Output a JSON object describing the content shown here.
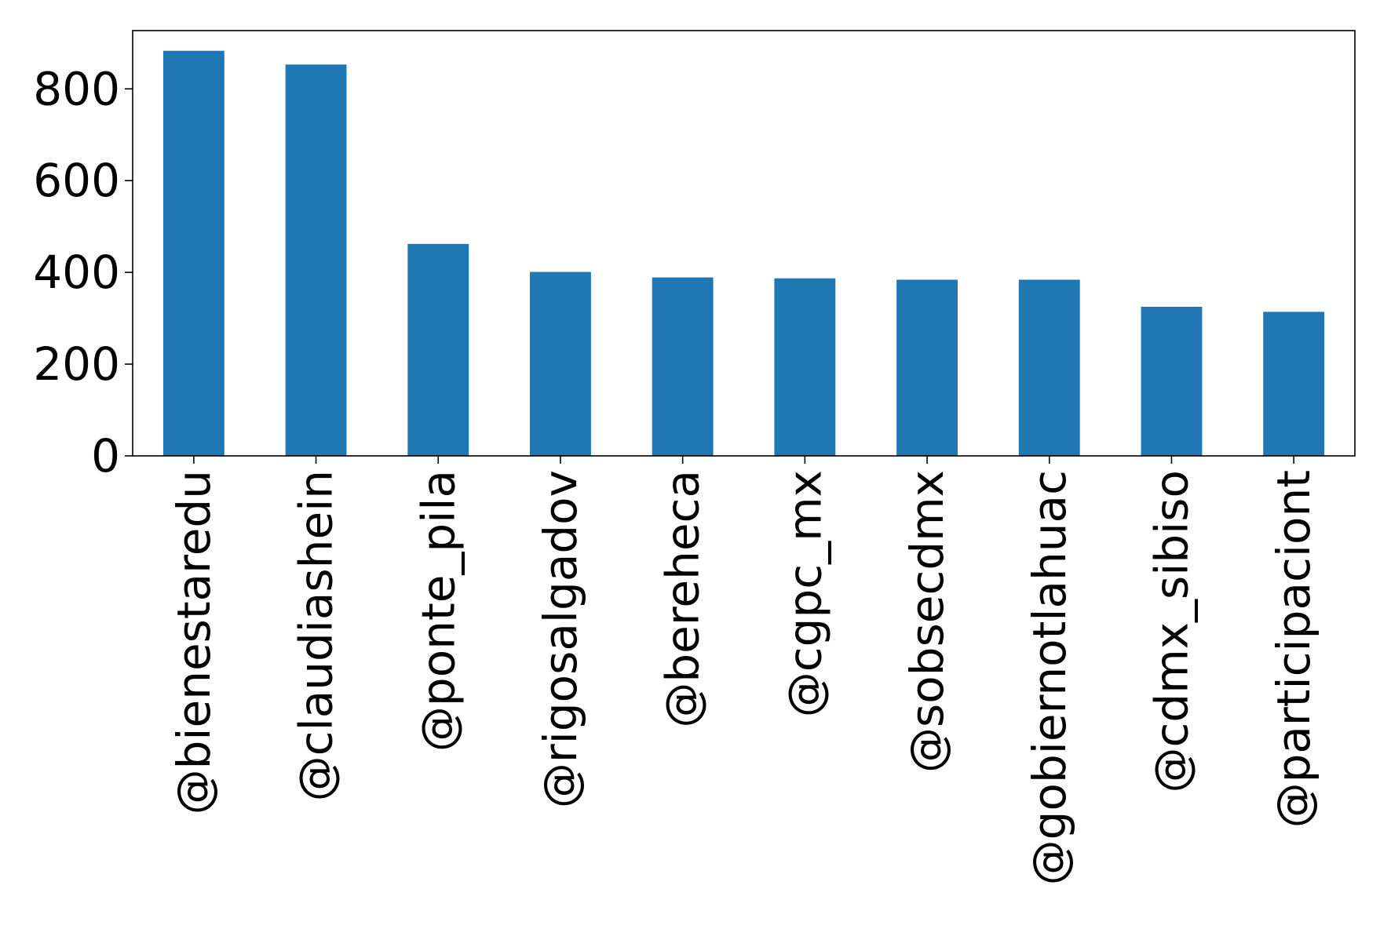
{
  "chart_data": {
    "type": "bar",
    "title": "",
    "xlabel": "",
    "ylabel": "",
    "categories": [
      "@bienestaredu",
      "@claudiashein",
      "@ponte_pila",
      "@rigosalgadov",
      "@bereheca",
      "@cgpc_mx",
      "@sobsecdmx",
      "@gobiernotlahuac",
      "@cdmx_sibiso",
      "@participaciont"
    ],
    "values": [
      883,
      853,
      462,
      401,
      389,
      387,
      384,
      384,
      325,
      314
    ],
    "ylim": [
      0,
      927
    ],
    "yticks": [
      "0",
      "200",
      "400",
      "600",
      "800"
    ],
    "ytick_values": [
      0,
      200,
      400,
      600,
      800
    ],
    "bar_color": "#1f77b4",
    "grid": false,
    "legend": "none"
  }
}
